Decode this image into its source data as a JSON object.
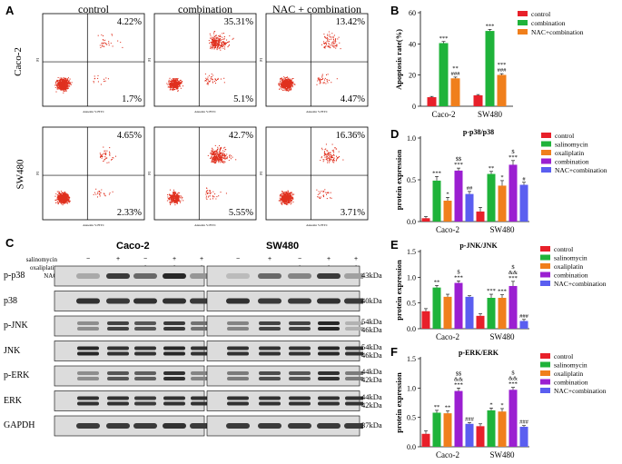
{
  "panel_letters": {
    "A": "A",
    "B": "B",
    "C": "C",
    "D": "D",
    "E": "E",
    "F": "F"
  },
  "flow": {
    "col_titles": [
      "control",
      "combination",
      "NAC + combination"
    ],
    "row_labels": [
      "Caco-2",
      "SW480"
    ],
    "x_axis_label": "Annexin V-FITC",
    "y_axis_label": "PI",
    "quadrant_values": [
      [
        {
          "ur": "4.22%",
          "lr": "1.7%"
        },
        {
          "ur": "35.31%",
          "lr": "5.1%"
        },
        {
          "ur": "13.42%",
          "lr": "4.47%"
        }
      ],
      [
        {
          "ur": "4.65%",
          "lr": "2.33%"
        },
        {
          "ur": "42.7%",
          "lr": "5.55%"
        },
        {
          "ur": "16.36%",
          "lr": "3.71%"
        }
      ]
    ]
  },
  "western": {
    "group_titles": [
      "Caco-2",
      "SW480"
    ],
    "treatments": [
      "salinomycin",
      "oxaliplatin",
      "NAC"
    ],
    "signs": [
      [
        "−",
        "+",
        "−",
        "+",
        "+"
      ],
      [
        "−",
        "−",
        "+",
        "+",
        "+"
      ],
      [
        "−",
        "−",
        "−",
        "−",
        "+"
      ]
    ],
    "proteins": [
      "p-p38",
      "p38",
      "p-JNK",
      "JNK",
      "p-ERK",
      "ERK",
      "GAPDH"
    ],
    "kda": [
      "43kDa",
      "40kDa",
      "54kDa\n46kDa",
      "54kDa\n46kDa",
      "44kDa\n42kDa",
      "44kDa\n42kDa",
      "37kDa"
    ]
  },
  "colors": {
    "control": "#e8202a",
    "salinomycin": "#1fb33a",
    "oxaliplatin": "#f07f1c",
    "combination": "#9b1fd1",
    "nac_combination": "#5a5ef0",
    "flow_dots": "#e0301e"
  },
  "chart_data": [
    {
      "type": "bar",
      "panel": "B",
      "title": "",
      "xlabel": "",
      "ylabel": "Apoptosis rate(%)",
      "ylim": [
        0,
        60
      ],
      "yticks": [
        0,
        20,
        40,
        60
      ],
      "categories": [
        "Caco-2",
        "SW480"
      ],
      "series": [
        {
          "name": "control",
          "values": [
            5.8,
            7.0
          ],
          "errors": [
            0.5,
            0.5
          ],
          "annotations": [
            "",
            ""
          ]
        },
        {
          "name": "combination",
          "values": [
            40.5,
            48.3
          ],
          "errors": [
            1.0,
            1.0
          ],
          "annotations": [
            "***",
            "***"
          ]
        },
        {
          "name": "NAC+combination",
          "values": [
            17.9,
            20.1
          ],
          "errors": [
            0.8,
            0.8
          ],
          "annotations": [
            "**\n###",
            "***\n###"
          ]
        }
      ]
    },
    {
      "type": "bar",
      "panel": "D",
      "title": "p-p38/p38",
      "xlabel": "",
      "ylabel": "protein expression",
      "ylim": [
        0,
        1.0
      ],
      "yticks": [
        0.0,
        0.5,
        1.0
      ],
      "categories": [
        "Caco-2",
        "SW480"
      ],
      "series": [
        {
          "name": "control",
          "values": [
            0.04,
            0.12
          ],
          "errors": [
            0.02,
            0.05
          ],
          "annotations": [
            "",
            ""
          ]
        },
        {
          "name": "salinomycin",
          "values": [
            0.49,
            0.57
          ],
          "errors": [
            0.05,
            0.03
          ],
          "annotations": [
            "***",
            "**"
          ]
        },
        {
          "name": "oxaliplatin",
          "values": [
            0.25,
            0.43
          ],
          "errors": [
            0.04,
            0.06
          ],
          "annotations": [
            "*",
            "*"
          ]
        },
        {
          "name": "combination",
          "values": [
            0.61,
            0.68
          ],
          "errors": [
            0.03,
            0.05
          ],
          "annotations": [
            "$$\n***",
            "$\n***"
          ]
        },
        {
          "name": "NAC+combination",
          "values": [
            0.33,
            0.44
          ],
          "errors": [
            0.03,
            0.03
          ],
          "annotations": [
            "##",
            "#"
          ]
        }
      ]
    },
    {
      "type": "bar",
      "panel": "E",
      "title": "p-JNK/JNK",
      "xlabel": "",
      "ylabel": "protein expression",
      "ylim": [
        0,
        1.5
      ],
      "yticks": [
        0.0,
        0.5,
        1.0,
        1.5
      ],
      "categories": [
        "Caco-2",
        "SW480"
      ],
      "series": [
        {
          "name": "control",
          "values": [
            0.34,
            0.25
          ],
          "errors": [
            0.05,
            0.04
          ],
          "annotations": [
            "",
            ""
          ]
        },
        {
          "name": "salinomycin",
          "values": [
            0.8,
            0.6
          ],
          "errors": [
            0.04,
            0.07
          ],
          "annotations": [
            "**",
            "***"
          ]
        },
        {
          "name": "oxaliplatin",
          "values": [
            0.62,
            0.6
          ],
          "errors": [
            0.05,
            0.06
          ],
          "annotations": [
            "",
            "***"
          ]
        },
        {
          "name": "combination",
          "values": [
            0.89,
            0.83
          ],
          "errors": [
            0.04,
            0.09
          ],
          "annotations": [
            "$\n***",
            "$\n&&\n***"
          ]
        },
        {
          "name": "NAC+combination",
          "values": [
            0.62,
            0.15
          ],
          "errors": [
            0.02,
            0.03
          ],
          "annotations": [
            "",
            "###"
          ]
        }
      ]
    },
    {
      "type": "bar",
      "panel": "F",
      "title": "p-ERK/ERK",
      "xlabel": "",
      "ylabel": "protein expression",
      "ylim": [
        0,
        1.5
      ],
      "yticks": [
        0.0,
        0.5,
        1.0,
        1.5
      ],
      "categories": [
        "Caco-2",
        "SW480"
      ],
      "series": [
        {
          "name": "control",
          "values": [
            0.22,
            0.35
          ],
          "errors": [
            0.05,
            0.04
          ],
          "annotations": [
            "",
            ""
          ]
        },
        {
          "name": "salinomycin",
          "values": [
            0.58,
            0.62
          ],
          "errors": [
            0.04,
            0.04
          ],
          "annotations": [
            "**",
            "*"
          ]
        },
        {
          "name": "oxaliplatin",
          "values": [
            0.57,
            0.6
          ],
          "errors": [
            0.04,
            0.05
          ],
          "annotations": [
            "**",
            "*"
          ]
        },
        {
          "name": "combination",
          "values": [
            0.95,
            0.97
          ],
          "errors": [
            0.05,
            0.04
          ],
          "annotations": [
            "$$\n&&\n***",
            "$\n&&\n***"
          ]
        },
        {
          "name": "NAC+combination",
          "values": [
            0.39,
            0.34
          ],
          "errors": [
            0.02,
            0.02
          ],
          "annotations": [
            "###",
            "###"
          ]
        }
      ]
    }
  ]
}
